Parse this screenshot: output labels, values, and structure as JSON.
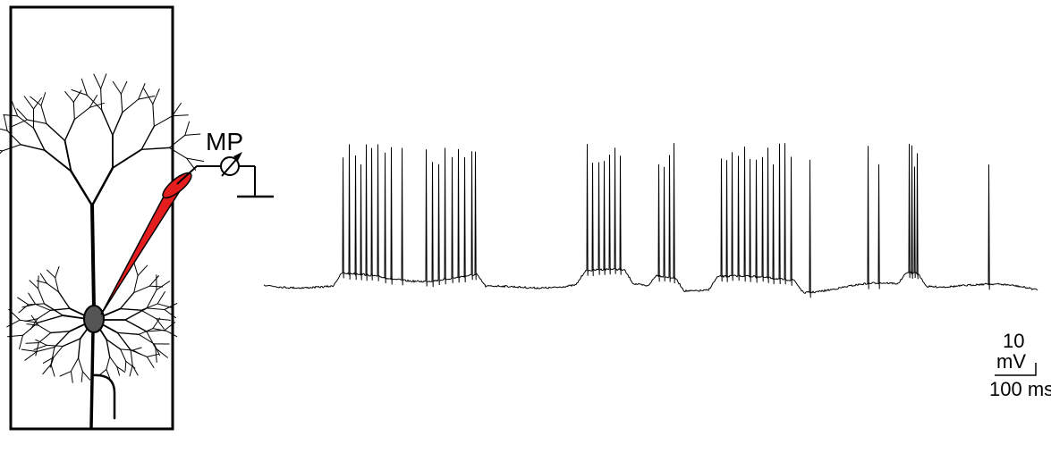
{
  "amplifier_label": "MP",
  "scale_bar": {
    "voltage": "10",
    "voltage_unit": "mV",
    "time": "100 ms"
  }
}
